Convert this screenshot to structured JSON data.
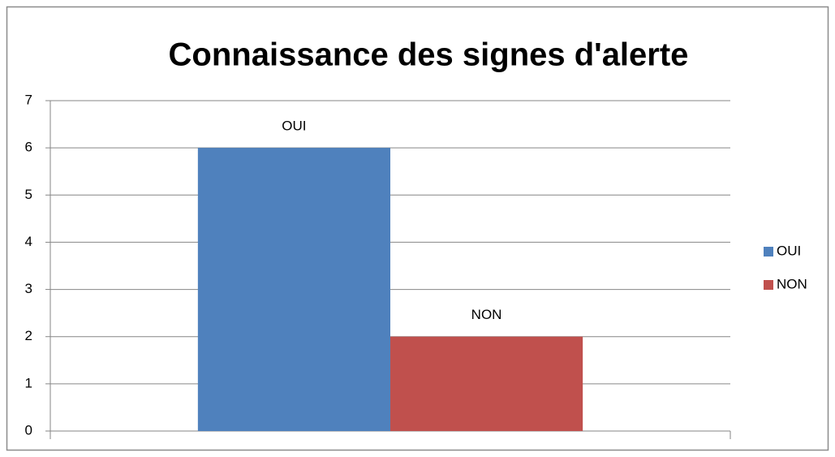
{
  "chart_data": {
    "type": "bar",
    "title": "Connaissance des signes d'alerte",
    "categories": [
      null
    ],
    "series": [
      {
        "name": "OUI",
        "color": "#4f81bd",
        "values": [
          6
        ]
      },
      {
        "name": "NON",
        "color": "#c0504d",
        "values": [
          2
        ]
      }
    ],
    "ylim": [
      0,
      7
    ],
    "yticks": [
      0,
      1,
      2,
      3,
      4,
      5,
      6,
      7
    ],
    "grid": true,
    "legend": "right"
  }
}
